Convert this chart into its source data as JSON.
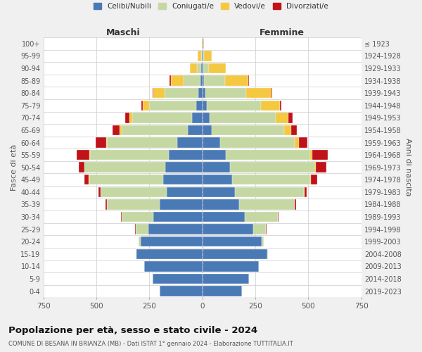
{
  "age_groups": [
    "0-4",
    "5-9",
    "10-14",
    "15-19",
    "20-24",
    "25-29",
    "30-34",
    "35-39",
    "40-44",
    "45-49",
    "50-54",
    "55-59",
    "60-64",
    "65-69",
    "70-74",
    "75-79",
    "80-84",
    "85-89",
    "90-94",
    "95-99",
    "100+"
  ],
  "birth_years": [
    "2019-2023",
    "2014-2018",
    "2009-2013",
    "2004-2008",
    "1999-2003",
    "1994-1998",
    "1989-1993",
    "1984-1988",
    "1979-1983",
    "1974-1978",
    "1969-1973",
    "1964-1968",
    "1959-1963",
    "1954-1958",
    "1949-1953",
    "1944-1948",
    "1939-1943",
    "1934-1938",
    "1929-1933",
    "1924-1928",
    "≤ 1923"
  ],
  "colors": {
    "celibi": "#4a7ab5",
    "coniugati": "#c5d8a4",
    "vedovi": "#f5c842",
    "divorziati": "#c0121a"
  },
  "maschi": {
    "celibi": [
      200,
      235,
      275,
      310,
      290,
      255,
      230,
      200,
      170,
      185,
      175,
      160,
      120,
      70,
      50,
      30,
      20,
      10,
      5,
      3,
      2
    ],
    "coniugati": [
      0,
      0,
      0,
      3,
      10,
      60,
      150,
      250,
      310,
      350,
      380,
      370,
      330,
      310,
      280,
      220,
      160,
      80,
      20,
      3,
      0
    ],
    "vedovi": [
      0,
      0,
      0,
      0,
      0,
      0,
      0,
      0,
      0,
      1,
      2,
      3,
      5,
      10,
      15,
      30,
      50,
      60,
      35,
      15,
      2
    ],
    "divorziati": [
      0,
      0,
      0,
      3,
      0,
      2,
      5,
      8,
      10,
      20,
      25,
      60,
      50,
      35,
      20,
      8,
      5,
      5,
      0,
      0,
      0
    ]
  },
  "femmine": {
    "celibi": [
      185,
      220,
      265,
      305,
      280,
      240,
      200,
      175,
      155,
      140,
      130,
      110,
      85,
      45,
      35,
      20,
      15,
      8,
      5,
      3,
      2
    ],
    "coniugati": [
      0,
      0,
      0,
      3,
      10,
      60,
      155,
      260,
      325,
      370,
      400,
      400,
      350,
      340,
      310,
      255,
      190,
      100,
      25,
      5,
      0
    ],
    "vedovi": [
      0,
      0,
      0,
      0,
      0,
      0,
      0,
      0,
      1,
      2,
      5,
      10,
      20,
      35,
      60,
      90,
      120,
      110,
      80,
      35,
      5
    ],
    "divorziati": [
      0,
      0,
      0,
      0,
      0,
      2,
      3,
      8,
      12,
      30,
      50,
      70,
      40,
      25,
      20,
      8,
      5,
      3,
      0,
      0,
      0
    ]
  },
  "title": "Popolazione per età, sesso e stato civile - 2024",
  "subtitle": "COMUNE DI BESANA IN BRIANZA (MB) - Dati ISTAT 1° gennaio 2024 - Elaborazione TUTTITALIA.IT",
  "xlabel_left": "Maschi",
  "xlabel_right": "Femmine",
  "ylabel_left": "Fasce di età",
  "ylabel_right": "Anni di nascita",
  "xlim": 750,
  "bg_color": "#f0f0f0",
  "plot_bg_color": "#ffffff",
  "grid_color": "#cccccc"
}
